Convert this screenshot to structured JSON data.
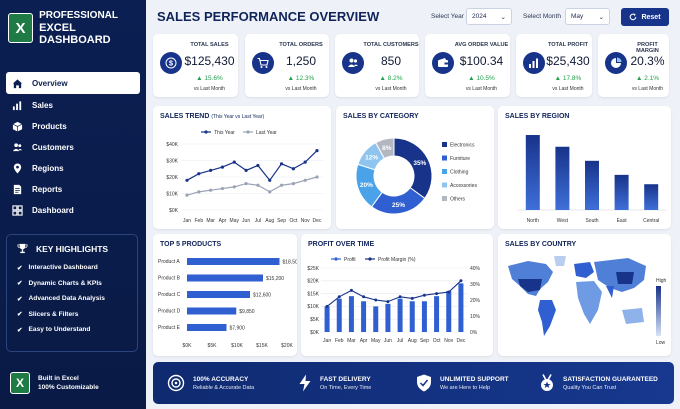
{
  "brand": {
    "line1": "PROFESSIONAL",
    "line2": "EXCEL DASHBOARD",
    "logo_letter": "X"
  },
  "nav": [
    {
      "label": "Overview",
      "icon": "home-icon",
      "active": true
    },
    {
      "label": "Sales",
      "icon": "bar-chart-icon"
    },
    {
      "label": "Products",
      "icon": "box-icon"
    },
    {
      "label": "Customers",
      "icon": "users-icon"
    },
    {
      "label": "Regions",
      "icon": "map-pin-icon"
    },
    {
      "label": "Reports",
      "icon": "document-icon"
    },
    {
      "label": "Dashboard",
      "icon": "grid-icon"
    }
  ],
  "highlights": {
    "title": "KEY HIGHLIGHTS",
    "items": [
      "Interactive Dashboard",
      "Dynamic Charts & KPIs",
      "Advanced Data Analysis",
      "Slicers & Filters",
      "Easy to Understand"
    ]
  },
  "built": {
    "line1": "Built in Excel",
    "line2": "100% Customizable"
  },
  "header": {
    "title": "SALES PERFORMANCE OVERVIEW",
    "year_label": "Select Year",
    "year_value": "2024",
    "month_label": "Select Month",
    "month_value": "May",
    "reset_label": "Reset"
  },
  "kpis": [
    {
      "label": "TOTAL SALES",
      "value": "$125,430",
      "change": "▲ 15.6%",
      "vs": "vs Last Month",
      "icon": "dollar-icon"
    },
    {
      "label": "TOTAL ORDERS",
      "value": "1,250",
      "change": "▲ 12.3%",
      "vs": "vs Last Month",
      "icon": "cart-icon"
    },
    {
      "label": "TOTAL CUSTOMERS",
      "value": "850",
      "change": "▲ 8.2%",
      "vs": "vs Last Month",
      "icon": "users-icon"
    },
    {
      "label": "AVG ORDER VALUE",
      "value": "$100.34",
      "change": "▲ 10.5%",
      "vs": "vs Last Month",
      "icon": "wallet-icon"
    },
    {
      "label": "TOTAL PROFIT",
      "value": "$25,430",
      "change": "▲ 17.8%",
      "vs": "vs Last Month",
      "icon": "bar-chart-icon"
    },
    {
      "label": "PROFIT MARGIN",
      "value": "20.3%",
      "change": "▲ 2.1%",
      "vs": "vs Last Month",
      "icon": "pie-icon"
    }
  ],
  "colors": {
    "primary": "#17338a",
    "accent": "#2f5fd0",
    "light": "#9aa3b5",
    "positive": "#20a04a"
  },
  "chart_data": [
    {
      "type": "line",
      "title": "SALES TREND",
      "subtitle": "(This Year vs Last Year)",
      "categories": [
        "Jan",
        "Feb",
        "Mar",
        "Apr",
        "May",
        "Jun",
        "Jul",
        "Aug",
        "Sep",
        "Oct",
        "Nov",
        "Dec"
      ],
      "series": [
        {
          "name": "This Year",
          "values": [
            18,
            22,
            24,
            26,
            29,
            24,
            27,
            18,
            28,
            25,
            29,
            36
          ]
        },
        {
          "name": "Last Year",
          "values": [
            9,
            11,
            12,
            13,
            14,
            16,
            15,
            11,
            15,
            16,
            18,
            20
          ]
        }
      ],
      "yticks": [
        "$0K",
        "$10K",
        "$20K",
        "$30K",
        "$40K"
      ],
      "ylim": [
        0,
        40
      ]
    },
    {
      "type": "pie",
      "title": "SALES BY CATEGORY",
      "categories": [
        "Electronics",
        "Furniture",
        "Clothing",
        "Accessories",
        "Others"
      ],
      "values": [
        35,
        25,
        20,
        12,
        8
      ],
      "labels": [
        "35%",
        "25%",
        "20%",
        "12%",
        "8%"
      ],
      "colors": [
        "#17338a",
        "#2f5fd0",
        "#4aa3e8",
        "#8fc4ef",
        "#b3b7c2"
      ]
    },
    {
      "type": "bar",
      "title": "SALES BY REGION",
      "categories": [
        "North",
        "West",
        "South",
        "East",
        "Central"
      ],
      "values": [
        32,
        27,
        21,
        15,
        11
      ],
      "ylim": [
        0,
        35
      ]
    },
    {
      "type": "bar",
      "orientation": "horizontal",
      "title": "TOP 5 PRODUCTS",
      "categories": [
        "Product A",
        "Product B",
        "Product C",
        "Product D",
        "Product E"
      ],
      "values": [
        18500,
        15200,
        12600,
        9850,
        7900
      ],
      "labels": [
        "$18,500",
        "$15,200",
        "$12,600",
        "$9,850",
        "$7,900"
      ],
      "xticks": [
        "$0K",
        "$5K",
        "$10K",
        "$15K",
        "$20K"
      ],
      "xlim": [
        0,
        20000
      ]
    },
    {
      "type": "bar",
      "title": "PROFIT OVER TIME",
      "categories": [
        "Jan",
        "Feb",
        "Mar",
        "Apr",
        "May",
        "Jun",
        "Jul",
        "Aug",
        "Sep",
        "Oct",
        "Nov",
        "Dec"
      ],
      "series": [
        {
          "name": "Profit",
          "values": [
            10,
            13,
            14,
            12,
            10,
            11,
            13,
            12,
            12,
            14,
            16,
            19
          ]
        },
        {
          "name": "Profit Margin (%)",
          "values": [
            16,
            22,
            26,
            22,
            20,
            19,
            22,
            21,
            23,
            24,
            25,
            32
          ]
        }
      ],
      "yticks": [
        "$0K",
        "$5K",
        "$10K",
        "$15K",
        "$20K",
        "$25K"
      ],
      "ylim": [
        0,
        25
      ],
      "y2ticks": [
        "0%",
        "10%",
        "20%",
        "30%",
        "40%"
      ],
      "y2lim": [
        0,
        40
      ]
    },
    {
      "type": "heatmap",
      "title": "SALES BY COUNTRY",
      "legend_high": "High",
      "legend_low": "Low"
    }
  ],
  "footer": [
    {
      "title": "100% ACCURACY",
      "sub": "Reliable & Accurate Data",
      "icon": "target-icon"
    },
    {
      "title": "FAST DELIVERY",
      "sub": "On Time, Every Time",
      "icon": "lightning-icon"
    },
    {
      "title": "UNLIMITED SUPPORT",
      "sub": "We are Here to Help",
      "icon": "shield-icon"
    },
    {
      "title": "SATISFACTION GUARANTEED",
      "sub": "Quality You Can Trust",
      "icon": "medal-icon"
    }
  ]
}
